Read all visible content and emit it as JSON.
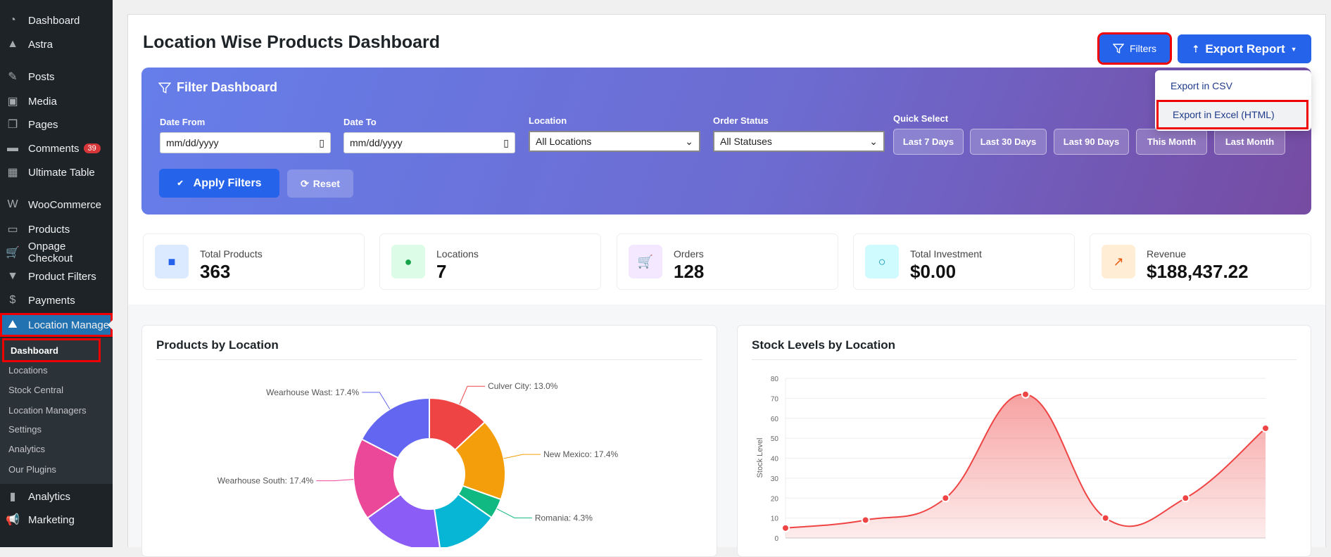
{
  "sidebar": {
    "items": [
      {
        "label": "Dashboard",
        "icon": "gauge-icon"
      },
      {
        "label": "Astra",
        "icon": "astra-icon"
      },
      {
        "label": "Posts",
        "icon": "pin-icon"
      },
      {
        "label": "Media",
        "icon": "media-icon"
      },
      {
        "label": "Pages",
        "icon": "pages-icon"
      },
      {
        "label": "Comments",
        "icon": "comment-icon",
        "badge": "39"
      },
      {
        "label": "Ultimate Table",
        "icon": "table-icon"
      },
      {
        "label": "WooCommerce",
        "icon": "woo-icon"
      },
      {
        "label": "Products",
        "icon": "archive-icon"
      },
      {
        "label": "Onpage Checkout",
        "icon": "cart-icon"
      },
      {
        "label": "Product Filters",
        "icon": "filter-icon"
      },
      {
        "label": "Payments",
        "icon": "dollar-icon"
      },
      {
        "label": "Location Manage",
        "icon": "map-icon",
        "active": true
      },
      {
        "label": "Analytics",
        "icon": "bar-chart-icon"
      },
      {
        "label": "Marketing",
        "icon": "megaphone-icon"
      }
    ],
    "submenu": [
      "Dashboard",
      "Locations",
      "Stock Central",
      "Location Managers",
      "Settings",
      "Analytics",
      "Our Plugins"
    ]
  },
  "header": {
    "title": "Location Wise Products Dashboard",
    "filters_label": "Filters",
    "export_label": "Export Report",
    "export_menu": [
      "Export in CSV",
      "Export in Excel (HTML)"
    ]
  },
  "filter": {
    "title": "Filter Dashboard",
    "date_from_label": "Date From",
    "date_from_placeholder": "mm/dd/yyyy",
    "date_to_label": "Date To",
    "date_to_placeholder": "mm/dd/yyyy",
    "location_label": "Location",
    "location_value": "All Locations",
    "status_label": "Order Status",
    "status_value": "All Statuses",
    "quick_label": "Quick Select",
    "quick": [
      "Last 7 Days",
      "Last 30 Days",
      "Last 90 Days",
      "This Month",
      "Last Month"
    ],
    "apply_label": "Apply Filters",
    "reset_label": "Reset"
  },
  "stats": [
    {
      "label": "Total Products",
      "value": "363",
      "icon": "box-icon",
      "color": "#2563eb",
      "bg": "#dbeafe"
    },
    {
      "label": "Locations",
      "value": "7",
      "icon": "map-pin-icon",
      "color": "#16a34a",
      "bg": "#dcfce7"
    },
    {
      "label": "Orders",
      "value": "128",
      "icon": "cart-icon",
      "color": "#9333ea",
      "bg": "#f3e8ff"
    },
    {
      "label": "Total Investment",
      "value": "$0.00",
      "icon": "circle-icon",
      "color": "#0891b2",
      "bg": "#cffafe"
    },
    {
      "label": "Revenue",
      "value": "$188,437.22",
      "icon": "line-chart-icon",
      "color": "#ea580c",
      "bg": "#ffedd5"
    }
  ],
  "chart_data": [
    {
      "type": "pie",
      "title": "Products by Location",
      "donut": true,
      "slices": [
        {
          "label": "Culver City",
          "value": 13.0,
          "color": "#ef4444"
        },
        {
          "label": "New Mexico",
          "value": 17.4,
          "color": "#f59e0b"
        },
        {
          "label": "Romania",
          "value": 4.3,
          "color": "#10b981"
        },
        {
          "label": "",
          "value": 13.0,
          "color": "#06b6d4"
        },
        {
          "label": "",
          "value": 17.4,
          "color": "#8b5cf6"
        },
        {
          "label": "Wearhouse South",
          "value": 17.4,
          "color": "#ec4899"
        },
        {
          "label": "Wearhouse Wast",
          "value": 17.4,
          "color": "#6366f1"
        }
      ]
    },
    {
      "type": "area",
      "title": "Stock Levels by Location",
      "ylabel": "Stock Level",
      "ylim": [
        0,
        80
      ],
      "yticks": [
        0,
        10,
        20,
        30,
        40,
        50,
        60,
        70,
        80
      ],
      "values": [
        5,
        9,
        20,
        72,
        10,
        20,
        55
      ],
      "color": "#ef4444",
      "grid": true
    }
  ]
}
